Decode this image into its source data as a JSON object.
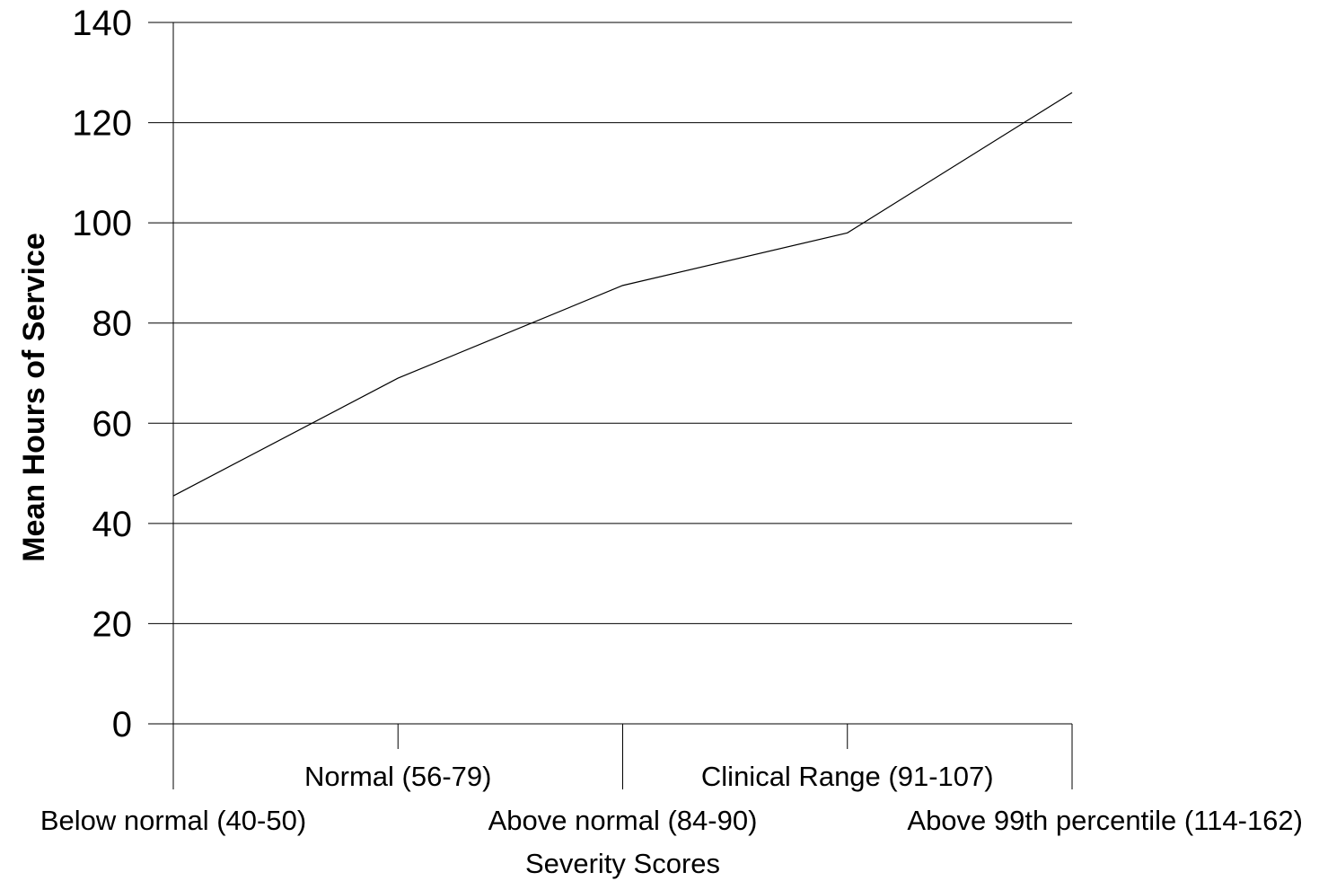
{
  "chart_data": {
    "type": "line",
    "title": "",
    "xlabel": "Severity Scores",
    "ylabel": "Mean Hours of Service",
    "categories": [
      "Below normal (40-50)",
      "Normal (56-79)",
      "Above normal (84-90)",
      "Clinical Range (91-107)",
      "Above 99th percentile (114-162)"
    ],
    "series": [
      {
        "values": [
          45.5,
          69,
          87.5,
          98,
          126
        ]
      }
    ],
    "ylim": [
      0,
      140
    ],
    "yticks": [
      0,
      20,
      40,
      60,
      80,
      100,
      120,
      140
    ],
    "grid": "horizontal",
    "legend": "none",
    "line_color": "#000000"
  }
}
